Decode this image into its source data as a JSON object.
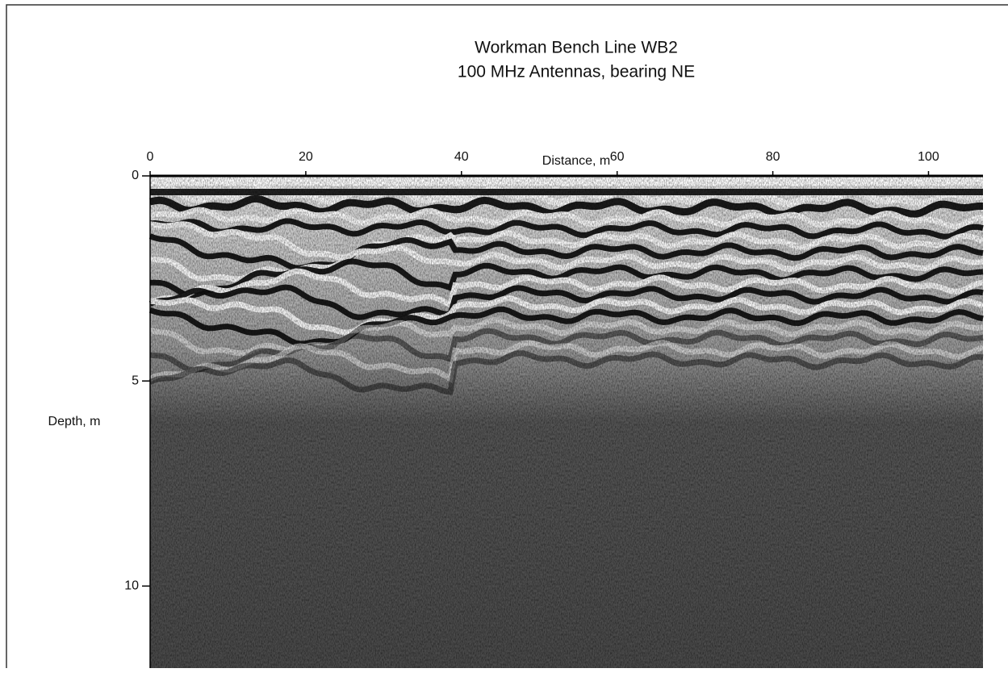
{
  "chart_data": {
    "type": "radargram",
    "title": "Workman Bench Line WB2",
    "subtitle": "100 MHz Antennas, bearing NE",
    "x_label": "Distance, m",
    "y_label": "Depth, m",
    "xlim": [
      0,
      107
    ],
    "xticks": [
      0,
      20,
      40,
      60,
      80,
      100
    ],
    "ylim": [
      0,
      12
    ],
    "yticks": [
      0,
      5,
      10
    ],
    "x_axis_position": "top",
    "y_inverted": true
  }
}
